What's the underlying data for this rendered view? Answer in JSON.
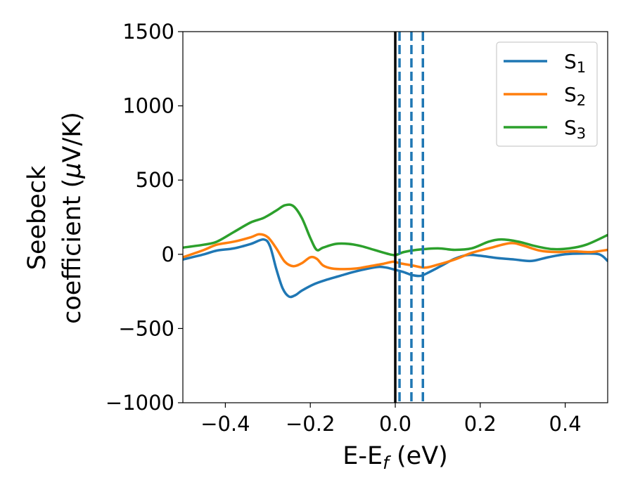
{
  "chart_data": {
    "type": "line",
    "xlabel_main": "E-E",
    "xlabel_sub": "f",
    "xlabel_unit": " (eV)",
    "ylabel_line1": "Seebeck",
    "ylabel_line2_text": "coefficient  (",
    "ylabel_line2_mu": "μ",
    "ylabel_line2_unit": "V/K)",
    "xlim": [
      -0.5,
      0.5
    ],
    "ylim": [
      -1000,
      1500
    ],
    "xticks": [
      {
        "value": -0.4,
        "label": "−0.4"
      },
      {
        "value": -0.2,
        "label": "−0.2"
      },
      {
        "value": 0.0,
        "label": "0.0"
      },
      {
        "value": 0.2,
        "label": "0.2"
      },
      {
        "value": 0.4,
        "label": "0.4"
      }
    ],
    "yticks": [
      {
        "value": -1000,
        "label": "−1000"
      },
      {
        "value": -500,
        "label": "−500"
      },
      {
        "value": 0,
        "label": "0"
      },
      {
        "value": 500,
        "label": "500"
      },
      {
        "value": 1000,
        "label": "1000"
      },
      {
        "value": 1500,
        "label": "1500"
      }
    ],
    "legend_position": "top-right",
    "grid": false,
    "vertical_lines": [
      {
        "x": 0.0,
        "style": "solid",
        "color": "#000000"
      },
      {
        "x": 0.01,
        "style": "dashed",
        "color": "#1f77b4"
      },
      {
        "x": 0.038,
        "style": "dashed",
        "color": "#1f77b4"
      },
      {
        "x": 0.065,
        "style": "dashed",
        "color": "#1f77b4"
      }
    ],
    "series": [
      {
        "name_main": "S",
        "name_sub": "1",
        "color": "#1f77b4",
        "points": [
          [
            -0.5,
            -35
          ],
          [
            -0.45,
            0
          ],
          [
            -0.42,
            25
          ],
          [
            -0.38,
            40
          ],
          [
            -0.34,
            70
          ],
          [
            -0.31,
            100
          ],
          [
            -0.295,
            55
          ],
          [
            -0.28,
            -100
          ],
          [
            -0.265,
            -230
          ],
          [
            -0.25,
            -285
          ],
          [
            -0.235,
            -275
          ],
          [
            -0.22,
            -245
          ],
          [
            -0.19,
            -200
          ],
          [
            -0.16,
            -170
          ],
          [
            -0.13,
            -145
          ],
          [
            -0.1,
            -120
          ],
          [
            -0.07,
            -100
          ],
          [
            -0.04,
            -85
          ],
          [
            -0.02,
            -90
          ],
          [
            0.0,
            -105
          ],
          [
            0.02,
            -120
          ],
          [
            0.04,
            -140
          ],
          [
            0.06,
            -145
          ],
          [
            0.08,
            -120
          ],
          [
            0.11,
            -75
          ],
          [
            0.14,
            -30
          ],
          [
            0.17,
            -5
          ],
          [
            0.2,
            -10
          ],
          [
            0.24,
            -25
          ],
          [
            0.28,
            -35
          ],
          [
            0.32,
            -45
          ],
          [
            0.36,
            -20
          ],
          [
            0.4,
            0
          ],
          [
            0.44,
            5
          ],
          [
            0.48,
            0
          ],
          [
            0.5,
            -45
          ]
        ]
      },
      {
        "name_main": "S",
        "name_sub": "2",
        "color": "#ff7f0e",
        "points": [
          [
            -0.5,
            -20
          ],
          [
            -0.45,
            30
          ],
          [
            -0.42,
            65
          ],
          [
            -0.38,
            85
          ],
          [
            -0.34,
            115
          ],
          [
            -0.32,
            135
          ],
          [
            -0.3,
            115
          ],
          [
            -0.28,
            40
          ],
          [
            -0.26,
            -50
          ],
          [
            -0.24,
            -80
          ],
          [
            -0.22,
            -60
          ],
          [
            -0.2,
            -20
          ],
          [
            -0.185,
            -30
          ],
          [
            -0.17,
            -75
          ],
          [
            -0.15,
            -95
          ],
          [
            -0.12,
            -100
          ],
          [
            -0.09,
            -95
          ],
          [
            -0.06,
            -80
          ],
          [
            -0.03,
            -65
          ],
          [
            -0.005,
            -50
          ],
          [
            0.01,
            -60
          ],
          [
            0.04,
            -75
          ],
          [
            0.07,
            -90
          ],
          [
            0.1,
            -70
          ],
          [
            0.14,
            -35
          ],
          [
            0.18,
            10
          ],
          [
            0.22,
            40
          ],
          [
            0.27,
            75
          ],
          [
            0.3,
            60
          ],
          [
            0.34,
            25
          ],
          [
            0.38,
            15
          ],
          [
            0.42,
            20
          ],
          [
            0.46,
            15
          ],
          [
            0.5,
            30
          ]
        ]
      },
      {
        "name_main": "S",
        "name_sub": "3",
        "color": "#2ca02c",
        "points": [
          [
            -0.5,
            45
          ],
          [
            -0.45,
            65
          ],
          [
            -0.42,
            85
          ],
          [
            -0.38,
            150
          ],
          [
            -0.34,
            215
          ],
          [
            -0.31,
            245
          ],
          [
            -0.28,
            295
          ],
          [
            -0.26,
            330
          ],
          [
            -0.24,
            325
          ],
          [
            -0.22,
            245
          ],
          [
            -0.2,
            110
          ],
          [
            -0.185,
            30
          ],
          [
            -0.17,
            45
          ],
          [
            -0.14,
            70
          ],
          [
            -0.11,
            70
          ],
          [
            -0.08,
            55
          ],
          [
            -0.05,
            30
          ],
          [
            -0.02,
            5
          ],
          [
            0.0,
            -5
          ],
          [
            0.02,
            15
          ],
          [
            0.05,
            30
          ],
          [
            0.1,
            40
          ],
          [
            0.14,
            30
          ],
          [
            0.18,
            40
          ],
          [
            0.22,
            85
          ],
          [
            0.25,
            100
          ],
          [
            0.29,
            85
          ],
          [
            0.33,
            55
          ],
          [
            0.37,
            35
          ],
          [
            0.41,
            40
          ],
          [
            0.45,
            65
          ],
          [
            0.5,
            130
          ]
        ]
      }
    ]
  }
}
